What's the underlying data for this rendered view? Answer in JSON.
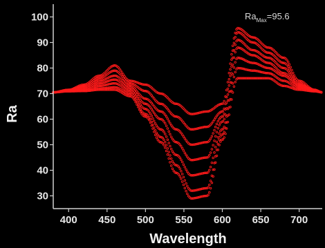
{
  "chart_data": {
    "type": "line",
    "title": "",
    "xlabel": "Wavelength",
    "ylabel": "Ra",
    "xlim": [
      380,
      730
    ],
    "ylim": [
      25,
      105
    ],
    "x_ticks": [
      400,
      450,
      500,
      550,
      600,
      650,
      700
    ],
    "y_ticks": [
      30,
      40,
      50,
      60,
      70,
      80,
      90,
      100
    ],
    "grid": false,
    "marker_color": "#ff1a1a",
    "background": "#000000",
    "annotation": {
      "base": "Ra",
      "subscript": "Max",
      "value": "=95.6"
    },
    "series": [
      {
        "x": [
          380,
          400,
          420,
          440,
          460,
          480,
          500,
          520,
          540,
          560,
          580,
          600,
          620,
          640,
          660,
          680,
          700,
          720,
          730
        ],
        "y": [
          70.5,
          71.5,
          73.5,
          77,
          81,
          75,
          73.5,
          70,
          66,
          62,
          63,
          66,
          95.6,
          92,
          88,
          84,
          75,
          71.5,
          70.5
        ]
      },
      {
        "x": [
          380,
          400,
          420,
          440,
          460,
          480,
          500,
          520,
          540,
          560,
          580,
          600,
          620,
          640,
          660,
          680,
          700,
          720,
          730
        ],
        "y": [
          70.5,
          71.4,
          73,
          76,
          79,
          74,
          71,
          66,
          61,
          56,
          57,
          63,
          94,
          90,
          86,
          82,
          74,
          71.4,
          70.5
        ]
      },
      {
        "x": [
          380,
          400,
          420,
          440,
          460,
          480,
          500,
          520,
          540,
          560,
          580,
          600,
          620,
          640,
          660,
          680,
          700,
          720,
          730
        ],
        "y": [
          70.5,
          71.3,
          72.5,
          75,
          77,
          73,
          68,
          63,
          56,
          50,
          51,
          61,
          91,
          87,
          84,
          80,
          73.5,
          71.3,
          70.5
        ]
      },
      {
        "x": [
          380,
          400,
          420,
          440,
          460,
          480,
          500,
          520,
          540,
          560,
          580,
          600,
          620,
          640,
          660,
          680,
          700,
          720,
          730
        ],
        "y": [
          70.5,
          71.2,
          72,
          74,
          75.5,
          72,
          66,
          60,
          51,
          44,
          45,
          59,
          88,
          85,
          82,
          78,
          73,
          71.2,
          70.5
        ]
      },
      {
        "x": [
          380,
          400,
          420,
          440,
          460,
          480,
          500,
          520,
          540,
          560,
          580,
          600,
          620,
          640,
          660,
          680,
          700,
          720,
          730
        ],
        "y": [
          70.5,
          71.1,
          71.5,
          73,
          74,
          71,
          64,
          56,
          46,
          38,
          39,
          56,
          84,
          82,
          80,
          77,
          72.5,
          71.1,
          70.5
        ]
      },
      {
        "x": [
          380,
          400,
          420,
          440,
          460,
          480,
          500,
          520,
          540,
          560,
          580,
          600,
          620,
          640,
          660,
          680,
          700,
          720,
          730
        ],
        "y": [
          70.5,
          71,
          71.2,
          72,
          72.5,
          70,
          62,
          53,
          42,
          32,
          33,
          54,
          80,
          79,
          78,
          75,
          72,
          71,
          70.5
        ]
      },
      {
        "x": [
          380,
          400,
          420,
          440,
          460,
          480,
          500,
          520,
          540,
          560,
          580,
          600,
          620,
          640,
          660,
          680,
          700,
          720,
          730
        ],
        "y": [
          70.5,
          70.9,
          71,
          71.5,
          71.5,
          69,
          61,
          51,
          39,
          29,
          30,
          52,
          76,
          76,
          76,
          73,
          71.5,
          70.9,
          70.5
        ]
      }
    ]
  }
}
